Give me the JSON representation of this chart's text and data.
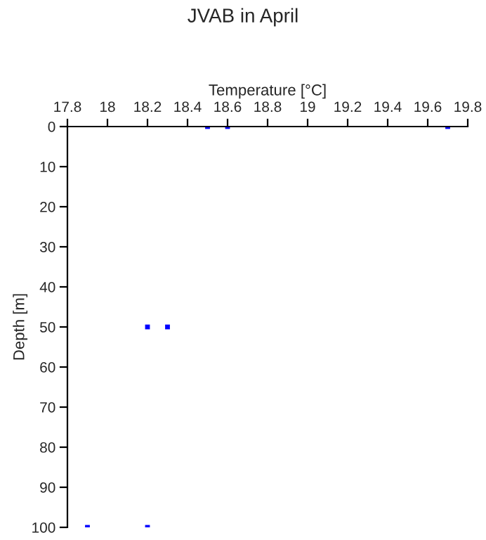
{
  "chart_data": {
    "type": "scatter",
    "title": "JVAB in April",
    "xlabel": "Temperature [°C]",
    "ylabel": "Depth [m]",
    "x": [
      18.5,
      18.6,
      19.7,
      18.2,
      18.3,
      17.9,
      18.2
    ],
    "series": [
      {
        "color": "#0000ff",
        "values": [
          0,
          0,
          0,
          50,
          50,
          100,
          100
        ]
      }
    ],
    "xlim": [
      17.8,
      19.8
    ],
    "xticks": [
      17.8,
      18,
      18.2,
      18.4,
      18.6,
      18.8,
      19,
      19.2,
      19.4,
      19.6,
      19.8
    ],
    "ylim": [
      100,
      0
    ],
    "yticks": [
      0,
      10,
      20,
      30,
      40,
      50,
      60,
      70,
      80,
      90,
      100
    ],
    "marker": "square",
    "grid": false,
    "legend": false
  }
}
